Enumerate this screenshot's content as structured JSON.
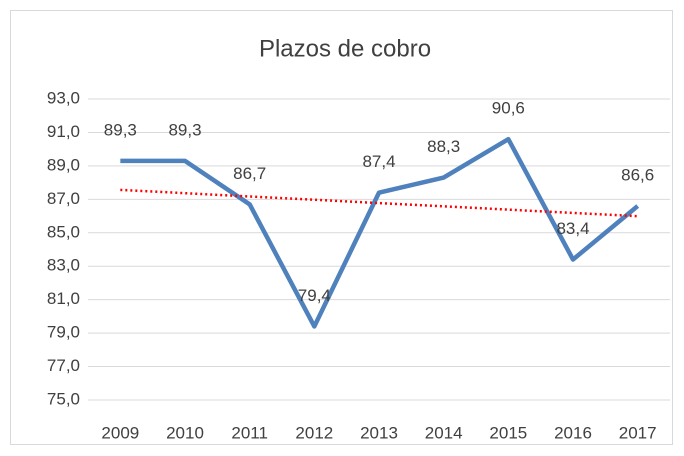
{
  "chart_data": {
    "type": "line",
    "title": "Plazos de cobro",
    "categories": [
      "2009",
      "2010",
      "2011",
      "2012",
      "2013",
      "2014",
      "2015",
      "2016",
      "2017"
    ],
    "series": [
      {
        "color": "#4f81bd",
        "values": [
          89.3,
          89.3,
          86.7,
          79.4,
          87.4,
          88.3,
          90.6,
          83.4,
          86.6
        ],
        "value_labels": [
          "89,3",
          "89,3",
          "86,7",
          "79,4",
          "87,4",
          "88,3",
          "90,6",
          "83,4",
          "86,6"
        ]
      }
    ],
    "ylim": [
      75,
      93
    ],
    "yticks": [
      {
        "value": 75,
        "label": "75,0"
      },
      {
        "value": 77,
        "label": "77,0"
      },
      {
        "value": 79,
        "label": "79,0"
      },
      {
        "value": 81,
        "label": "81,0"
      },
      {
        "value": 83,
        "label": "83,0"
      },
      {
        "value": 85,
        "label": "85,0"
      },
      {
        "value": 87,
        "label": "87,0"
      },
      {
        "value": 89,
        "label": "89,0"
      },
      {
        "value": 91,
        "label": "91,0"
      },
      {
        "value": 93,
        "label": "93,0"
      }
    ],
    "grid": true,
    "trendline": {
      "type": "linear",
      "color": "#ff0000"
    }
  }
}
